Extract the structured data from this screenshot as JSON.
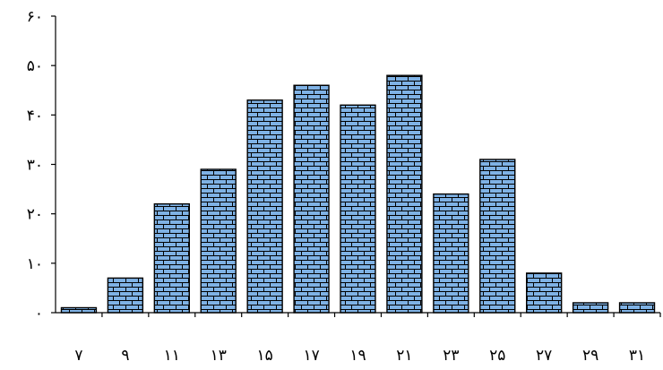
{
  "chart_data": {
    "type": "bar",
    "title": "",
    "xlabel": "",
    "ylabel": "",
    "categories": [
      "۷",
      "۹",
      "۱۱",
      "۱۳",
      "۱۵",
      "۱۷",
      "۱۹",
      "۲۱",
      "۲۳",
      "۲۵",
      "۲۷",
      "۲۹",
      "۳۱"
    ],
    "values": [
      1,
      7,
      22,
      29,
      43,
      46,
      42,
      48,
      24,
      31,
      8,
      2,
      2
    ],
    "ylim": [
      0,
      60
    ],
    "yticks": [
      0,
      10,
      20,
      30,
      40,
      50,
      60
    ],
    "ytick_labels": [
      "٠",
      "١٠",
      "٢٠",
      "٣٠",
      "۴٠",
      "۵٠",
      "۶٠"
    ],
    "grid": false,
    "legend": "none",
    "bar_fill": "#7fb2e5",
    "bar_pattern": "brick",
    "pattern_line_color": "#000000"
  }
}
